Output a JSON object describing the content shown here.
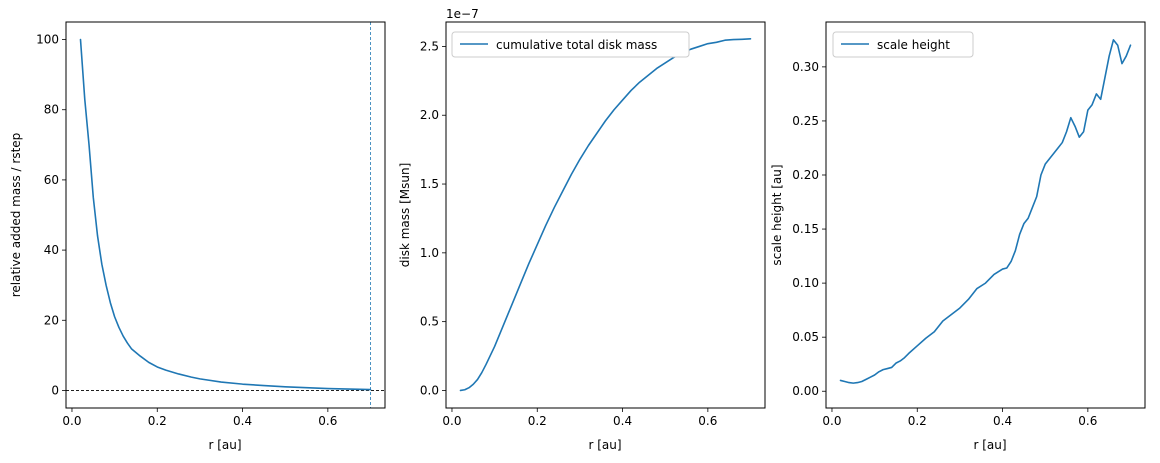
{
  "figure": {
    "background": "#ffffff",
    "line_color": "#1f77b4"
  },
  "chart_data": [
    {
      "type": "line",
      "xlabel": "r [au]",
      "ylabel": "relative added mass / rstep",
      "xlim": [
        -0.014,
        0.734
      ],
      "ylim": [
        -5,
        105
      ],
      "xticks": [
        0.0,
        0.2,
        0.4,
        0.6
      ],
      "xtick_labels": [
        "0.0",
        "0.2",
        "0.4",
        "0.6"
      ],
      "yticks": [
        0,
        20,
        40,
        60,
        80,
        100
      ],
      "ytick_labels": [
        "0",
        "20",
        "40",
        "60",
        "80",
        "100"
      ],
      "series": [
        {
          "x": [
            0.02,
            0.03,
            0.04,
            0.05,
            0.06,
            0.07,
            0.08,
            0.09,
            0.1,
            0.11,
            0.12,
            0.13,
            0.14,
            0.16,
            0.18,
            0.2,
            0.22,
            0.25,
            0.28,
            0.3,
            0.35,
            0.4,
            0.45,
            0.5,
            0.55,
            0.6,
            0.65,
            0.7
          ],
          "y": [
            100,
            83,
            70,
            55,
            44,
            36,
            30,
            25,
            21,
            18,
            15.5,
            13.5,
            11.8,
            9.8,
            8.0,
            6.7,
            5.8,
            4.7,
            3.8,
            3.3,
            2.4,
            1.8,
            1.4,
            1.05,
            0.8,
            0.55,
            0.4,
            0.25
          ],
          "color": "#1f77b4"
        }
      ],
      "reference_lines": [
        {
          "orientation": "horizontal",
          "value": 0,
          "color": "#000000",
          "style": "dashed"
        },
        {
          "orientation": "vertical",
          "value": 0.7,
          "color": "#1f77b4",
          "style": "dashed"
        }
      ],
      "legend": null,
      "grid": false
    },
    {
      "type": "line",
      "xlabel": "r [au]",
      "ylabel": "disk mass [Msun]",
      "offset_text": "1e−7",
      "xlim": [
        -0.014,
        0.734
      ],
      "ylim": [
        -0.1275,
        2.6775
      ],
      "xticks": [
        0.0,
        0.2,
        0.4,
        0.6
      ],
      "xtick_labels": [
        "0.0",
        "0.2",
        "0.4",
        "0.6"
      ],
      "yticks": [
        0.0,
        0.5,
        1.0,
        1.5,
        2.0,
        2.5
      ],
      "ytick_labels": [
        "0.0",
        "0.5",
        "1.0",
        "1.5",
        "2.0",
        "2.5"
      ],
      "series": [
        {
          "name": "cumulative total disk mass",
          "x": [
            0.02,
            0.03,
            0.04,
            0.05,
            0.06,
            0.07,
            0.08,
            0.1,
            0.12,
            0.14,
            0.16,
            0.18,
            0.2,
            0.22,
            0.24,
            0.26,
            0.28,
            0.3,
            0.32,
            0.34,
            0.36,
            0.38,
            0.4,
            0.42,
            0.44,
            0.46,
            0.48,
            0.5,
            0.52,
            0.54,
            0.56,
            0.58,
            0.6,
            0.62,
            0.64,
            0.66,
            0.68,
            0.7
          ],
          "y": [
            0.0,
            0.005,
            0.02,
            0.045,
            0.08,
            0.13,
            0.19,
            0.32,
            0.47,
            0.62,
            0.77,
            0.92,
            1.06,
            1.2,
            1.33,
            1.45,
            1.57,
            1.68,
            1.78,
            1.87,
            1.96,
            2.04,
            2.11,
            2.18,
            2.24,
            2.29,
            2.34,
            2.38,
            2.42,
            2.45,
            2.48,
            2.5,
            2.52,
            2.53,
            2.545,
            2.55,
            2.552,
            2.555
          ],
          "color": "#1f77b4"
        }
      ],
      "legend": "upper left",
      "grid": false
    },
    {
      "type": "line",
      "xlabel": "r [au]",
      "ylabel": "scale height [au]",
      "xlim": [
        -0.014,
        0.734
      ],
      "ylim": [
        -0.0155,
        0.3415
      ],
      "xticks": [
        0.0,
        0.2,
        0.4,
        0.6
      ],
      "xtick_labels": [
        "0.0",
        "0.2",
        "0.4",
        "0.6"
      ],
      "yticks": [
        0.0,
        0.05,
        0.1,
        0.15,
        0.2,
        0.25,
        0.3
      ],
      "ytick_labels": [
        "0.00",
        "0.05",
        "0.10",
        "0.15",
        "0.20",
        "0.25",
        "0.30"
      ],
      "series": [
        {
          "name": "scale height",
          "x": [
            0.02,
            0.03,
            0.04,
            0.05,
            0.06,
            0.07,
            0.08,
            0.09,
            0.1,
            0.11,
            0.12,
            0.13,
            0.14,
            0.15,
            0.16,
            0.17,
            0.18,
            0.2,
            0.22,
            0.24,
            0.26,
            0.28,
            0.3,
            0.32,
            0.34,
            0.36,
            0.38,
            0.4,
            0.41,
            0.42,
            0.43,
            0.44,
            0.45,
            0.46,
            0.47,
            0.48,
            0.49,
            0.5,
            0.51,
            0.52,
            0.53,
            0.54,
            0.55,
            0.56,
            0.57,
            0.58,
            0.59,
            0.6,
            0.61,
            0.62,
            0.63,
            0.64,
            0.65,
            0.66,
            0.67,
            0.68,
            0.69,
            0.7
          ],
          "y": [
            0.01,
            0.009,
            0.008,
            0.0075,
            0.008,
            0.009,
            0.011,
            0.013,
            0.015,
            0.018,
            0.02,
            0.021,
            0.022,
            0.026,
            0.028,
            0.031,
            0.035,
            0.042,
            0.049,
            0.055,
            0.065,
            0.071,
            0.077,
            0.085,
            0.095,
            0.1,
            0.108,
            0.113,
            0.114,
            0.12,
            0.13,
            0.145,
            0.155,
            0.16,
            0.17,
            0.18,
            0.2,
            0.21,
            0.215,
            0.22,
            0.225,
            0.23,
            0.24,
            0.253,
            0.245,
            0.235,
            0.24,
            0.26,
            0.265,
            0.275,
            0.27,
            0.29,
            0.31,
            0.325,
            0.32,
            0.303,
            0.31,
            0.32
          ],
          "color": "#1f77b4"
        }
      ],
      "legend": "upper left",
      "grid": false
    }
  ]
}
